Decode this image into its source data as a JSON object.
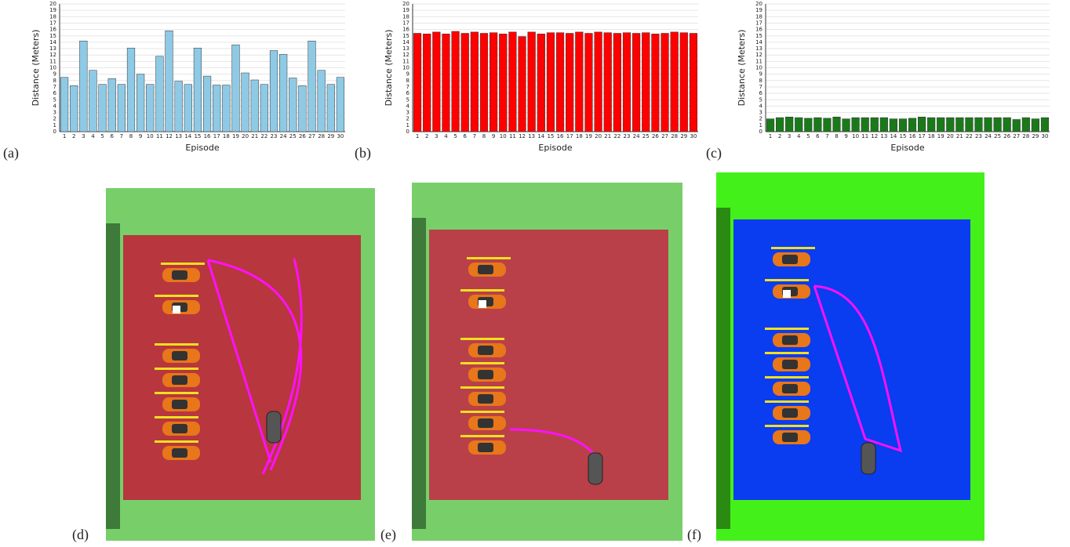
{
  "chart_data": [
    {
      "type": "bar",
      "panel_label": "(a)",
      "x_label": "Episode",
      "y_label": "Distance (Meters)",
      "color": "#8ecae6",
      "categories": [
        "1",
        "2",
        "3",
        "4",
        "5",
        "6",
        "7",
        "8",
        "9",
        "10",
        "11",
        "12",
        "13",
        "14",
        "15",
        "16",
        "17",
        "18",
        "19",
        "20",
        "21",
        "22",
        "23",
        "24",
        "25",
        "26",
        "27",
        "28",
        "29",
        "30"
      ],
      "values": [
        8.5,
        7.2,
        14.2,
        9.6,
        7.4,
        8.3,
        7.4,
        13.1,
        9.0,
        7.4,
        11.8,
        15.8,
        7.9,
        7.4,
        13.1,
        8.7,
        7.3,
        7.3,
        13.6,
        9.2,
        8.1,
        7.4,
        12.7,
        12.1,
        8.4,
        7.2,
        14.2,
        9.6,
        7.4,
        8.5
      ],
      "ylim": [
        0,
        20
      ],
      "yticks": [
        0,
        1,
        2,
        3,
        4,
        5,
        6,
        7,
        8,
        9,
        10,
        11,
        12,
        13,
        14,
        15,
        16,
        17,
        18,
        19,
        20
      ],
      "grid": true
    },
    {
      "type": "bar",
      "panel_label": "(b)",
      "x_label": "Episode",
      "y_label": "Distance (Meters)",
      "color": "#ff0000",
      "categories": [
        "1",
        "2",
        "3",
        "4",
        "5",
        "6",
        "7",
        "8",
        "9",
        "10",
        "11",
        "12",
        "13",
        "14",
        "15",
        "16",
        "17",
        "18",
        "19",
        "20",
        "21",
        "22",
        "23",
        "24",
        "25",
        "26",
        "27",
        "28",
        "29",
        "30"
      ],
      "values": [
        15.4,
        15.3,
        15.6,
        15.3,
        15.7,
        15.4,
        15.6,
        15.4,
        15.5,
        15.3,
        15.6,
        14.9,
        15.6,
        15.3,
        15.5,
        15.5,
        15.4,
        15.6,
        15.4,
        15.6,
        15.5,
        15.4,
        15.5,
        15.4,
        15.5,
        15.3,
        15.4,
        15.6,
        15.5,
        15.4
      ],
      "ylim": [
        0,
        20
      ],
      "yticks": [
        0,
        1,
        2,
        3,
        4,
        5,
        6,
        7,
        8,
        9,
        10,
        11,
        12,
        13,
        14,
        15,
        16,
        17,
        18,
        19,
        20
      ],
      "grid": true
    },
    {
      "type": "bar",
      "panel_label": "(c)",
      "x_label": "Episode",
      "y_label": "Distance (Meters)",
      "color": "#1a7a1a",
      "categories": [
        "1",
        "2",
        "3",
        "4",
        "5",
        "6",
        "7",
        "8",
        "9",
        "10",
        "11",
        "12",
        "13",
        "14",
        "15",
        "16",
        "17",
        "18",
        "19",
        "20",
        "21",
        "22",
        "23",
        "24",
        "25",
        "26",
        "27",
        "28",
        "29",
        "30"
      ],
      "values": [
        2.0,
        2.2,
        2.3,
        2.2,
        2.1,
        2.2,
        2.1,
        2.3,
        2.0,
        2.2,
        2.2,
        2.2,
        2.2,
        2.0,
        2.0,
        2.1,
        2.3,
        2.2,
        2.2,
        2.2,
        2.2,
        2.2,
        2.2,
        2.2,
        2.2,
        2.2,
        1.9,
        2.2,
        2.0,
        2.2
      ],
      "ylim": [
        0,
        20
      ],
      "yticks": [
        0,
        1,
        2,
        3,
        4,
        5,
        6,
        7,
        8,
        9,
        10,
        11,
        12,
        13,
        14,
        15,
        16,
        17,
        18,
        19,
        20
      ],
      "grid": true
    }
  ],
  "scenes": [
    {
      "label": "(d)"
    },
    {
      "label": "(e)"
    },
    {
      "label": "(f)"
    }
  ]
}
